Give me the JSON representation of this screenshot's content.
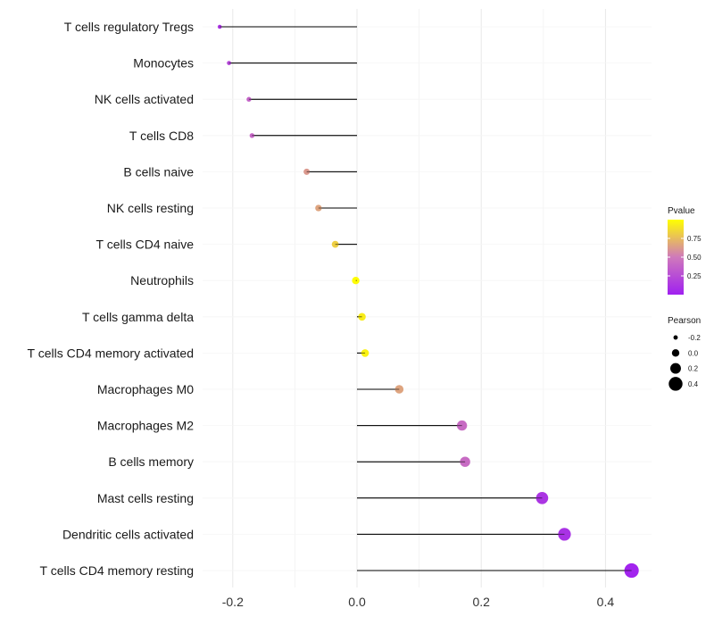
{
  "chart_data": {
    "type": "lollipop",
    "title": "",
    "xlabel": "",
    "ylabel": "",
    "xlim": [
      -0.285,
      0.47
    ],
    "xticks": [
      -0.2,
      0.0,
      0.2,
      0.4
    ],
    "xtick_labels": [
      "-0.2",
      "0.0",
      "0.2",
      "0.4"
    ],
    "grid": true,
    "categories": [
      "T cells regulatory  Tregs",
      "Monocytes",
      "NK cells activated",
      "T cells CD8",
      "B cells naive",
      "NK cells resting",
      "T cells CD4 naive",
      "Neutrophils",
      "T cells gamma delta",
      "T cells CD4 memory activated",
      "Macrophages M0",
      "Macrophages M2",
      "B cells memory",
      "Mast cells resting",
      "Dendritic cells activated",
      "T cells CD4 memory resting"
    ],
    "pearson": [
      -0.221,
      -0.206,
      -0.174,
      -0.169,
      -0.081,
      -0.062,
      -0.035,
      -0.002,
      0.008,
      0.013,
      0.068,
      0.169,
      0.174,
      0.298,
      0.334,
      0.442
    ],
    "pvalue": [
      0.12,
      0.22,
      0.38,
      0.4,
      0.62,
      0.66,
      0.82,
      0.99,
      0.93,
      0.95,
      0.66,
      0.42,
      0.42,
      0.12,
      0.1,
      0.02
    ],
    "color_legend": {
      "title": "Pvalue",
      "ticks": [
        0.25,
        0.5,
        0.75
      ],
      "tick_labels": [
        "0.25",
        "0.50",
        "0.75"
      ],
      "range": [
        0.0,
        1.0
      ],
      "low_color": "#a020f0",
      "mid_color": "#cf79bb",
      "high_color": "#ffff00"
    },
    "size_legend": {
      "title": "Pearson",
      "values": [
        -0.2,
        0.0,
        0.2,
        0.4
      ],
      "labels": [
        "-0.2",
        "0.0",
        "0.2",
        "0.4"
      ]
    },
    "legend_position": "right"
  }
}
